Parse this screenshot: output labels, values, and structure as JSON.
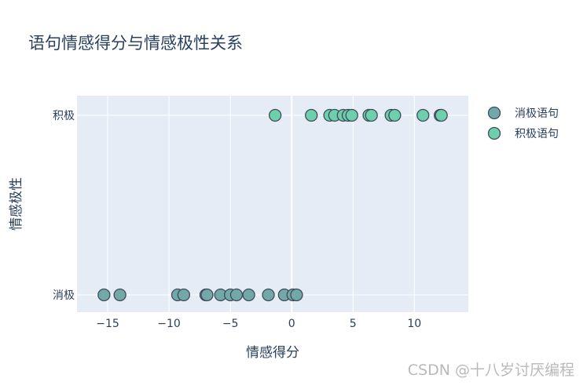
{
  "chart_data": {
    "type": "scatter",
    "title": "语句情感得分与情感极性关系",
    "xlabel": "情感得分",
    "ylabel": "情感极性",
    "xlim": [
      -17.5,
      14.4
    ],
    "xticks": [
      -15,
      -10,
      -5,
      0,
      5,
      10
    ],
    "xtick_labels": [
      "−15",
      "−10",
      "−5",
      "0",
      "5",
      "10"
    ],
    "categories": [
      "消极",
      "积极"
    ],
    "grid": true,
    "legend_position": "right",
    "series": [
      {
        "name": "消极语句",
        "category": "消极",
        "color": "#72a8a8",
        "x": [
          -15.3,
          -14.0,
          -9.3,
          -8.8,
          -7.0,
          -6.9,
          -5.8,
          -5.0,
          -4.5,
          -3.5,
          -1.9,
          -0.6,
          0.1,
          0.4
        ]
      },
      {
        "name": "积极语句",
        "category": "积极",
        "color": "#6dcfab",
        "x": [
          -1.35,
          1.6,
          3.1,
          3.5,
          4.2,
          4.6,
          4.9,
          6.3,
          6.5,
          8.1,
          8.4,
          10.7,
          12.1,
          12.2
        ]
      }
    ]
  },
  "watermark": "CSDN @十八岁讨厌编程"
}
